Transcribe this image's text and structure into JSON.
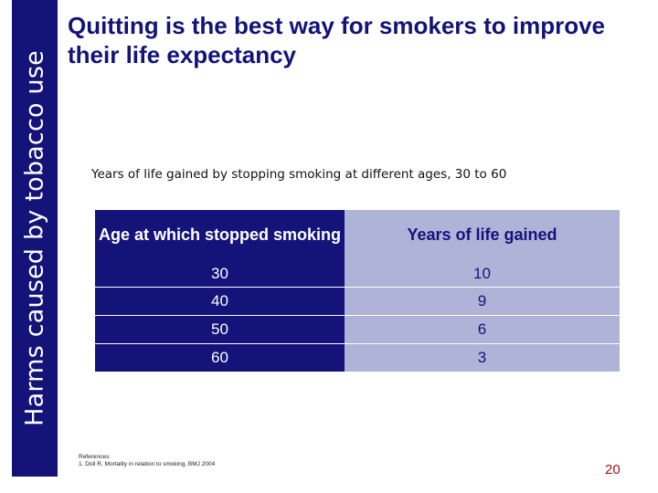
{
  "sidebar": {
    "label": "Harms caused by tobacco use"
  },
  "title": "Quitting is the best way for smokers to improve their life expectancy",
  "subtitle": "Years of life gained by stopping smoking at different ages, 30 to 60",
  "table": {
    "headers": [
      "Age at which stopped smoking",
      "Years of life gained"
    ],
    "rows": [
      [
        "30",
        "10"
      ],
      [
        "40",
        "9"
      ],
      [
        "50",
        "6"
      ],
      [
        "60",
        "3"
      ]
    ]
  },
  "references": {
    "heading": "References:",
    "items": [
      "1. Doll R, Mortality in relation to smoking, BMJ 2004"
    ]
  },
  "page_number": "20",
  "colors": {
    "navy": "#13137a",
    "lavender": "#b0b3d8",
    "page_number": "#aa1111"
  }
}
